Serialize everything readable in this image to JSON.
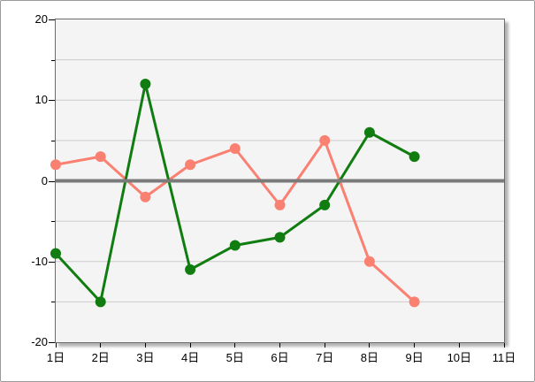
{
  "chart_data": {
    "type": "line",
    "x": [
      1,
      2,
      3,
      4,
      5,
      6,
      7,
      8,
      9
    ],
    "x_axis": {
      "labels": [
        "1日",
        "2日",
        "3日",
        "4日",
        "5日",
        "6日",
        "7日",
        "8日",
        "9日",
        "10日",
        "11日"
      ],
      "positions": [
        1,
        2,
        3,
        4,
        5,
        6,
        7,
        8,
        9,
        10,
        11
      ],
      "range": [
        1,
        11
      ]
    },
    "y_axis": {
      "tick_values": [
        20,
        10,
        0,
        -10,
        -20
      ],
      "tick_labels": [
        "20",
        "10",
        "0",
        "-10",
        "-20"
      ],
      "minor_tick_values": [
        15,
        5,
        -5,
        -15
      ],
      "gridline_values": [
        15,
        10,
        5,
        -5,
        -10,
        -15
      ],
      "range": [
        -20,
        20
      ]
    },
    "zero_line_value": 0,
    "series": [
      {
        "name": "salmon",
        "color": "#FA8072",
        "marker": "circle",
        "values": [
          2,
          3,
          -2,
          2,
          4,
          -3,
          5,
          -10,
          -15
        ]
      },
      {
        "name": "green",
        "color": "#117D11",
        "marker": "circle",
        "values": [
          -9,
          -15,
          12,
          -11,
          -8,
          -7,
          -3,
          6,
          3
        ]
      }
    ],
    "grid": "horizontal-only",
    "legend": "none",
    "title": ""
  },
  "colors": {
    "page_background": "#FFFFFF",
    "outer_border": "#9A9A9A",
    "plot_background": "#F4F4F4",
    "plot_border": "#6B6B6B",
    "gridline": "#CCCCCC",
    "zero_line": "#7A7A7A",
    "tick": "#000000",
    "label_text": "#000000"
  }
}
